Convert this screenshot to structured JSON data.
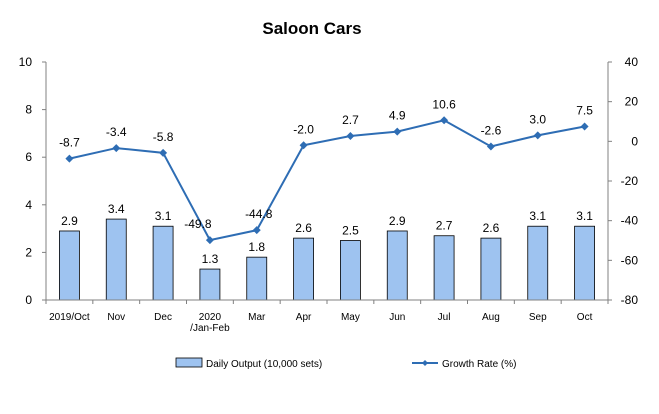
{
  "chart_data": {
    "type": "bar+line",
    "title": "Saloon Cars",
    "categories": [
      "2019/Oct",
      "Nov",
      "Dec",
      "2020\n/Jan-Feb",
      "Mar",
      "Apr",
      "May",
      "Jun",
      "Jul",
      "Aug",
      "Sep",
      "Oct"
    ],
    "series": [
      {
        "name": "Daily Output (10,000 sets)",
        "type": "bar",
        "axis": "left",
        "values": [
          2.9,
          3.4,
          3.1,
          1.3,
          1.8,
          2.6,
          2.5,
          2.9,
          2.7,
          2.6,
          3.1,
          3.1
        ],
        "labels": [
          "2.9",
          "3.4",
          "3.1",
          "1.3",
          "1.8",
          "2.6",
          "2.5",
          "2.9",
          "2.7",
          "2.6",
          "3.1",
          "3.1"
        ],
        "color": "#9ec3f0",
        "border": "#000000"
      },
      {
        "name": "Growth Rate (%)",
        "type": "line",
        "axis": "right",
        "values": [
          -8.7,
          -3.4,
          -5.8,
          -49.8,
          -44.8,
          -2.0,
          2.7,
          4.9,
          10.6,
          -2.6,
          3.0,
          7.5
        ],
        "labels": [
          "-8.7",
          "-3.4",
          "-5.8",
          "-49.8",
          "-44.8",
          "-2.0",
          "2.7",
          "4.9",
          "10.6",
          "-2.6",
          "3.0",
          "7.5"
        ],
        "color": "#2e6db4"
      }
    ],
    "y_left": {
      "range": [
        0,
        10
      ],
      "ticks": [
        "0",
        "2",
        "4",
        "6",
        "8",
        "10"
      ]
    },
    "y_right": {
      "range": [
        -80,
        40
      ],
      "ticks": [
        "-80",
        "-60",
        "-40",
        "-20",
        "0",
        "20",
        "40"
      ]
    },
    "grid": false,
    "legend": "bottom"
  }
}
